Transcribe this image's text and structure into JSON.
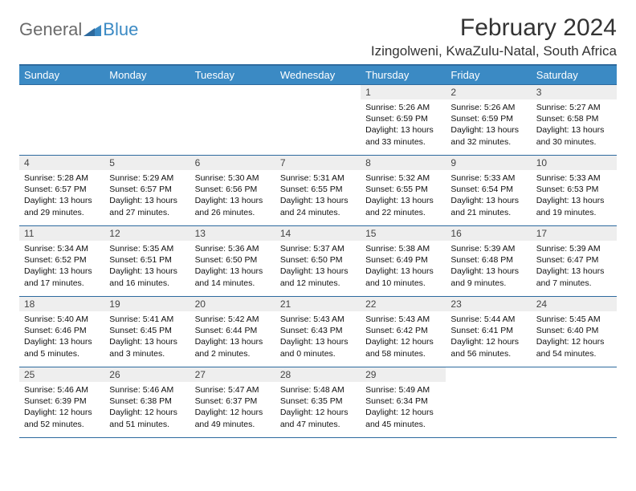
{
  "logo": {
    "general": "General",
    "blue": "Blue"
  },
  "title": "February 2024",
  "location": "Izingolweni, KwaZulu-Natal, South Africa",
  "colors": {
    "header_bg": "#3b8ac4",
    "header_border": "#2d6a9e",
    "daynum_bg": "#eeeeee",
    "text": "#000000",
    "logo_gray": "#6b6b6b",
    "logo_blue": "#3b8ac4"
  },
  "fonts": {
    "title_size_pt": 22,
    "location_size_pt": 13,
    "header_size_pt": 10,
    "cell_size_pt": 8
  },
  "day_names": [
    "Sunday",
    "Monday",
    "Tuesday",
    "Wednesday",
    "Thursday",
    "Friday",
    "Saturday"
  ],
  "weeks": [
    [
      {
        "n": "",
        "sr": "",
        "ss": "",
        "dl": ""
      },
      {
        "n": "",
        "sr": "",
        "ss": "",
        "dl": ""
      },
      {
        "n": "",
        "sr": "",
        "ss": "",
        "dl": ""
      },
      {
        "n": "",
        "sr": "",
        "ss": "",
        "dl": ""
      },
      {
        "n": "1",
        "sr": "Sunrise: 5:26 AM",
        "ss": "Sunset: 6:59 PM",
        "dl": "Daylight: 13 hours and 33 minutes."
      },
      {
        "n": "2",
        "sr": "Sunrise: 5:26 AM",
        "ss": "Sunset: 6:59 PM",
        "dl": "Daylight: 13 hours and 32 minutes."
      },
      {
        "n": "3",
        "sr": "Sunrise: 5:27 AM",
        "ss": "Sunset: 6:58 PM",
        "dl": "Daylight: 13 hours and 30 minutes."
      }
    ],
    [
      {
        "n": "4",
        "sr": "Sunrise: 5:28 AM",
        "ss": "Sunset: 6:57 PM",
        "dl": "Daylight: 13 hours and 29 minutes."
      },
      {
        "n": "5",
        "sr": "Sunrise: 5:29 AM",
        "ss": "Sunset: 6:57 PM",
        "dl": "Daylight: 13 hours and 27 minutes."
      },
      {
        "n": "6",
        "sr": "Sunrise: 5:30 AM",
        "ss": "Sunset: 6:56 PM",
        "dl": "Daylight: 13 hours and 26 minutes."
      },
      {
        "n": "7",
        "sr": "Sunrise: 5:31 AM",
        "ss": "Sunset: 6:55 PM",
        "dl": "Daylight: 13 hours and 24 minutes."
      },
      {
        "n": "8",
        "sr": "Sunrise: 5:32 AM",
        "ss": "Sunset: 6:55 PM",
        "dl": "Daylight: 13 hours and 22 minutes."
      },
      {
        "n": "9",
        "sr": "Sunrise: 5:33 AM",
        "ss": "Sunset: 6:54 PM",
        "dl": "Daylight: 13 hours and 21 minutes."
      },
      {
        "n": "10",
        "sr": "Sunrise: 5:33 AM",
        "ss": "Sunset: 6:53 PM",
        "dl": "Daylight: 13 hours and 19 minutes."
      }
    ],
    [
      {
        "n": "11",
        "sr": "Sunrise: 5:34 AM",
        "ss": "Sunset: 6:52 PM",
        "dl": "Daylight: 13 hours and 17 minutes."
      },
      {
        "n": "12",
        "sr": "Sunrise: 5:35 AM",
        "ss": "Sunset: 6:51 PM",
        "dl": "Daylight: 13 hours and 16 minutes."
      },
      {
        "n": "13",
        "sr": "Sunrise: 5:36 AM",
        "ss": "Sunset: 6:50 PM",
        "dl": "Daylight: 13 hours and 14 minutes."
      },
      {
        "n": "14",
        "sr": "Sunrise: 5:37 AM",
        "ss": "Sunset: 6:50 PM",
        "dl": "Daylight: 13 hours and 12 minutes."
      },
      {
        "n": "15",
        "sr": "Sunrise: 5:38 AM",
        "ss": "Sunset: 6:49 PM",
        "dl": "Daylight: 13 hours and 10 minutes."
      },
      {
        "n": "16",
        "sr": "Sunrise: 5:39 AM",
        "ss": "Sunset: 6:48 PM",
        "dl": "Daylight: 13 hours and 9 minutes."
      },
      {
        "n": "17",
        "sr": "Sunrise: 5:39 AM",
        "ss": "Sunset: 6:47 PM",
        "dl": "Daylight: 13 hours and 7 minutes."
      }
    ],
    [
      {
        "n": "18",
        "sr": "Sunrise: 5:40 AM",
        "ss": "Sunset: 6:46 PM",
        "dl": "Daylight: 13 hours and 5 minutes."
      },
      {
        "n": "19",
        "sr": "Sunrise: 5:41 AM",
        "ss": "Sunset: 6:45 PM",
        "dl": "Daylight: 13 hours and 3 minutes."
      },
      {
        "n": "20",
        "sr": "Sunrise: 5:42 AM",
        "ss": "Sunset: 6:44 PM",
        "dl": "Daylight: 13 hours and 2 minutes."
      },
      {
        "n": "21",
        "sr": "Sunrise: 5:43 AM",
        "ss": "Sunset: 6:43 PM",
        "dl": "Daylight: 13 hours and 0 minutes."
      },
      {
        "n": "22",
        "sr": "Sunrise: 5:43 AM",
        "ss": "Sunset: 6:42 PM",
        "dl": "Daylight: 12 hours and 58 minutes."
      },
      {
        "n": "23",
        "sr": "Sunrise: 5:44 AM",
        "ss": "Sunset: 6:41 PM",
        "dl": "Daylight: 12 hours and 56 minutes."
      },
      {
        "n": "24",
        "sr": "Sunrise: 5:45 AM",
        "ss": "Sunset: 6:40 PM",
        "dl": "Daylight: 12 hours and 54 minutes."
      }
    ],
    [
      {
        "n": "25",
        "sr": "Sunrise: 5:46 AM",
        "ss": "Sunset: 6:39 PM",
        "dl": "Daylight: 12 hours and 52 minutes."
      },
      {
        "n": "26",
        "sr": "Sunrise: 5:46 AM",
        "ss": "Sunset: 6:38 PM",
        "dl": "Daylight: 12 hours and 51 minutes."
      },
      {
        "n": "27",
        "sr": "Sunrise: 5:47 AM",
        "ss": "Sunset: 6:37 PM",
        "dl": "Daylight: 12 hours and 49 minutes."
      },
      {
        "n": "28",
        "sr": "Sunrise: 5:48 AM",
        "ss": "Sunset: 6:35 PM",
        "dl": "Daylight: 12 hours and 47 minutes."
      },
      {
        "n": "29",
        "sr": "Sunrise: 5:49 AM",
        "ss": "Sunset: 6:34 PM",
        "dl": "Daylight: 12 hours and 45 minutes."
      },
      {
        "n": "",
        "sr": "",
        "ss": "",
        "dl": ""
      },
      {
        "n": "",
        "sr": "",
        "ss": "",
        "dl": ""
      }
    ]
  ]
}
